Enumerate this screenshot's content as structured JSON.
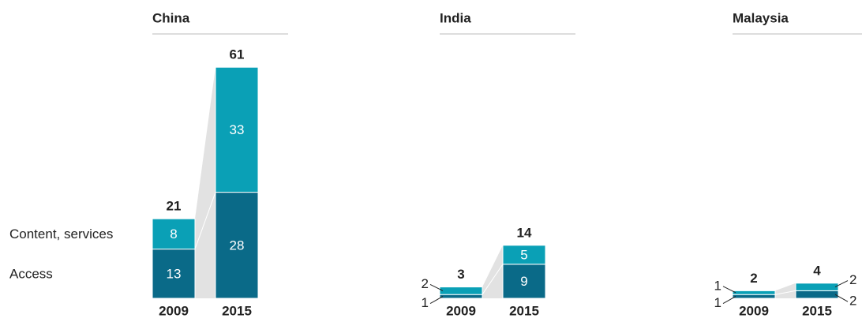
{
  "chart_data": [
    {
      "type": "bar",
      "title": "China",
      "categories": [
        "2009",
        "2015"
      ],
      "totals": [
        21,
        61
      ],
      "series": [
        {
          "name": "Access",
          "color": "#0a6a88",
          "values": [
            13,
            28
          ]
        },
        {
          "name": "Content, services",
          "color": "#0aa0b6",
          "values": [
            8,
            33
          ]
        }
      ]
    },
    {
      "type": "bar",
      "title": "India",
      "categories": [
        "2009",
        "2015"
      ],
      "totals": [
        3,
        14
      ],
      "series": [
        {
          "color": "#0a6a88",
          "values": [
            1,
            9
          ]
        },
        {
          "color": "#0aa0b6",
          "values": [
            2,
            5
          ]
        }
      ]
    },
    {
      "type": "bar",
      "title": "Malaysia",
      "categories": [
        "2009",
        "2015"
      ],
      "totals": [
        2,
        4
      ],
      "series": [
        {
          "color": "#0a6a88",
          "values": [
            1,
            2
          ]
        },
        {
          "color": "#0aa0b6",
          "values": [
            1,
            2
          ]
        }
      ]
    }
  ]
}
